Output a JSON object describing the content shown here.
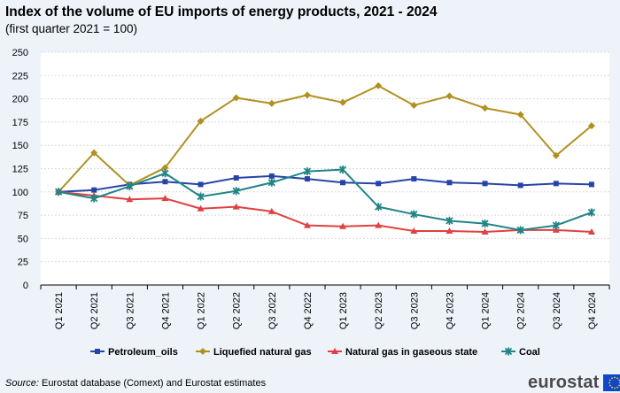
{
  "chart_data": {
    "type": "line",
    "title": "Index of the volume of EU imports of energy products, 2021 - 2024",
    "subtitle": "(first quarter 2021 = 100)",
    "categories": [
      "Q1 2021",
      "Q2 2021",
      "Q3 2021",
      "Q4 2021",
      "Q1 2022",
      "Q2 2022",
      "Q3 2022",
      "Q4 2022",
      "Q1 2023",
      "Q2 2023",
      "Q3 2023",
      "Q4 2023",
      "Q1 2024",
      "Q2 2024",
      "Q3 2024",
      "Q4 2024"
    ],
    "ylim": [
      0,
      250
    ],
    "yticks": [
      0,
      25,
      50,
      75,
      100,
      125,
      150,
      175,
      200,
      225,
      250
    ],
    "grid": true,
    "legend_position": "bottom",
    "series": [
      {
        "name": "Petroleum_oils",
        "color": "#2644a7",
        "marker": "square",
        "values": [
          100,
          102,
          108,
          111,
          108,
          115,
          117,
          114,
          110,
          109,
          114,
          110,
          109,
          107,
          109,
          108
        ]
      },
      {
        "name": "Liquefied natural gas",
        "color": "#b09120",
        "marker": "diamond",
        "values": [
          100,
          142,
          107,
          126,
          176,
          201,
          195,
          204,
          196,
          214,
          193,
          203,
          190,
          183,
          139,
          171
        ]
      },
      {
        "name": "Natural gas in gaseous state",
        "color": "#e04040",
        "marker": "triangle",
        "values": [
          100,
          96,
          92,
          93,
          82,
          84,
          79,
          64,
          63,
          64,
          58,
          58,
          57,
          59,
          59,
          57
        ]
      },
      {
        "name": "Coal",
        "color": "#208486",
        "marker": "star",
        "values": [
          100,
          93,
          106,
          120,
          95,
          101,
          110,
          122,
          124,
          84,
          76,
          69,
          66,
          59,
          64,
          78
        ]
      }
    ]
  },
  "footer": {
    "source_label": "Source:",
    "source_text": " Eurostat database (Comext) and Eurostat estimates",
    "logo_text": "eurostat",
    "flag_color": "#0e47cb",
    "star_color": "#ffd617"
  }
}
